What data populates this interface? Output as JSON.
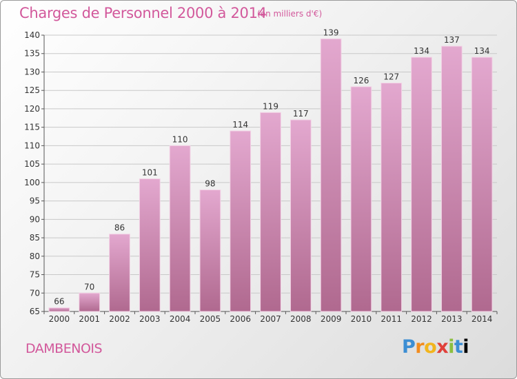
{
  "header": {
    "title": "Charges de Personnel 2000 à 2014",
    "subtitle": "(en milliers d'€)"
  },
  "footer": {
    "city": "DAMBENOIS",
    "logo_letters": [
      "P",
      "r",
      "o",
      "x",
      "i",
      "t",
      "i"
    ]
  },
  "chart_data": {
    "type": "bar",
    "title": "Charges de Personnel 2000 à 2014",
    "subtitle": "(en milliers d'€)",
    "xlabel": "",
    "ylabel": "",
    "categories": [
      "2000",
      "2001",
      "2002",
      "2003",
      "2004",
      "2005",
      "2006",
      "2007",
      "2008",
      "2009",
      "2010",
      "2011",
      "2012",
      "2013",
      "2014"
    ],
    "values": [
      66,
      70,
      86,
      101,
      110,
      98,
      114,
      119,
      117,
      139,
      126,
      127,
      134,
      137,
      134
    ],
    "ylim": [
      65,
      140
    ],
    "yticks": [
      65,
      70,
      75,
      80,
      85,
      90,
      95,
      100,
      105,
      110,
      115,
      120,
      125,
      130,
      135,
      140
    ],
    "grid": true,
    "legend": "none",
    "bar_color_top": "#e3a8cf",
    "bar_color_bottom": "#b0698f"
  }
}
